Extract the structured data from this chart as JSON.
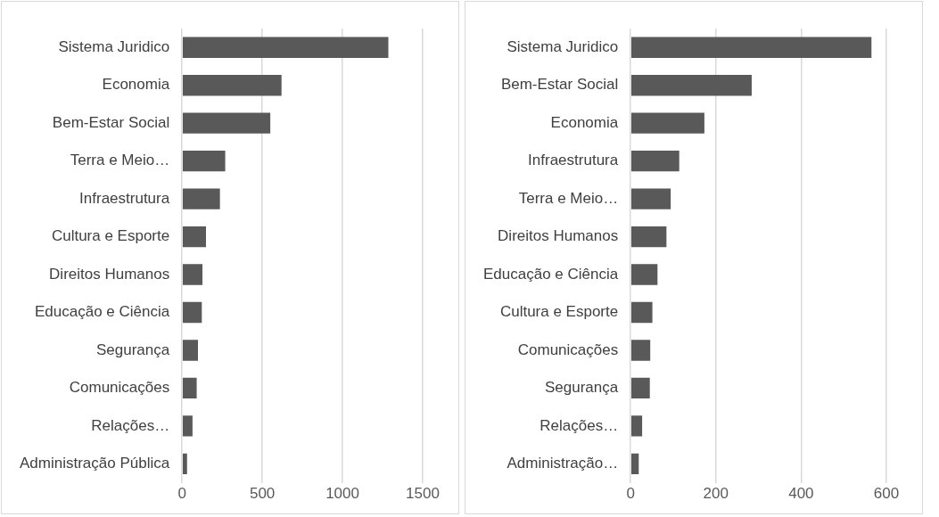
{
  "chart_data": [
    {
      "type": "bar",
      "orientation": "horizontal",
      "categories": [
        "Sistema Juridico",
        "Economia",
        "Bem-Estar Social",
        "Terra e Meio…",
        "Infraestrutura",
        "Cultura e Esporte",
        "Direitos Humanos",
        "Educação e Ciência",
        "Segurança",
        "Comunicações",
        "Relações…",
        "Administração Pública"
      ],
      "values": [
        1286,
        620,
        550,
        269,
        236,
        149,
        127,
        123,
        99,
        91,
        65,
        31
      ],
      "color": "#595959",
      "xlim": [
        0,
        1500
      ],
      "xticks": [
        0,
        500,
        1000,
        1500
      ],
      "grid": "x",
      "legend": false
    },
    {
      "type": "bar",
      "orientation": "horizontal",
      "categories": [
        "Sistema Juridico",
        "Bem-Estar Social",
        "Economia",
        "Infraestrutura",
        "Terra e Meio…",
        "Direitos Humanos",
        "Educação e Ciência",
        "Cultura e Esporte",
        "Comunicações",
        "Segurança",
        "Relações…",
        "Administração…"
      ],
      "values": [
        565,
        284,
        173,
        114,
        94,
        84,
        63,
        51,
        46,
        45,
        27,
        19
      ],
      "color": "#595959",
      "xlim": [
        0,
        600
      ],
      "xticks": [
        0,
        200,
        400,
        600
      ],
      "grid": "x",
      "legend": false
    }
  ]
}
